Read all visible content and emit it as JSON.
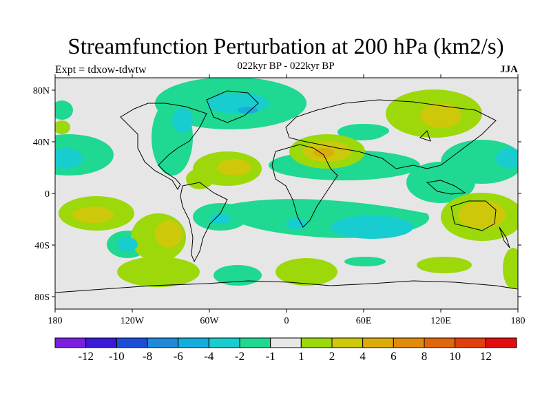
{
  "title": "Streamfunction Perturbation at 200 hPa (km2/s)",
  "subtitle_left": "Expt = tdxow-tdwtw",
  "subtitle_center": "022kyr BP - 022kyr BP",
  "subtitle_right": "JJA",
  "lat_ticks": [
    "80N",
    "40N",
    "0",
    "40S",
    "80S"
  ],
  "lon_ticks": [
    "180",
    "120W",
    "60W",
    "0",
    "60E",
    "120E",
    "180"
  ],
  "colorbar": {
    "colors": [
      "#7a1fe0",
      "#3a1ad6",
      "#1c4fd8",
      "#1e8ad8",
      "#13aedb",
      "#18cdd0",
      "#1fd892",
      "#e8e8e8",
      "#9cd80a",
      "#cdc80a",
      "#dcac0a",
      "#e08c0a",
      "#e0660c",
      "#e0400e",
      "#e00e0e"
    ],
    "labels": [
      "-12",
      "-10",
      "-8",
      "-6",
      "-4",
      "-2",
      "-1",
      "1",
      "2",
      "4",
      "6",
      "8",
      "10",
      "12"
    ]
  },
  "map_background": "#e6e6e6"
}
